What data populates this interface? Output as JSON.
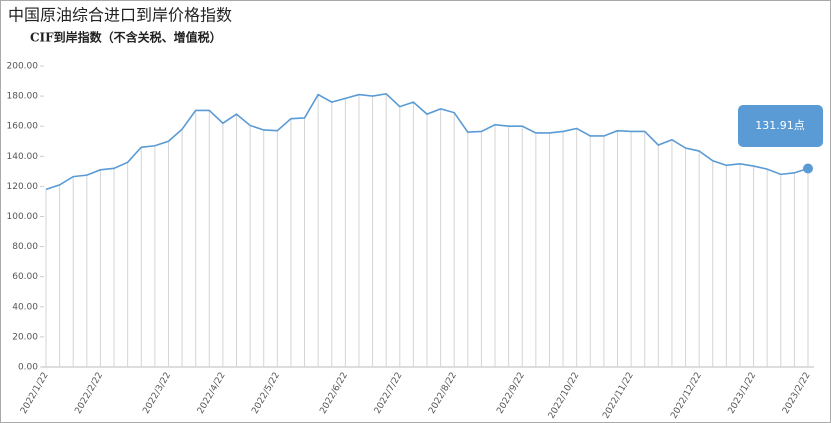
{
  "chart_data": {
    "type": "line",
    "title": "中国原油综合进口到岸价格指数",
    "subtitle": "CIF到岸指数（不含关税、增值税）",
    "annotation": "131.91点",
    "color": "#5b9bd5",
    "drop_lines": true,
    "categories": [
      "2022/1/22",
      null,
      null,
      null,
      "2022/2/22",
      null,
      null,
      null,
      null,
      "2022/3/22",
      null,
      null,
      null,
      "2022/4/22",
      null,
      null,
      null,
      "2022/5/22",
      null,
      null,
      null,
      null,
      "2022/6/22",
      null,
      null,
      null,
      "2022/7/22",
      null,
      null,
      null,
      "2022/8/22",
      null,
      null,
      null,
      null,
      "2022/9/22",
      null,
      null,
      null,
      "2022/10/22",
      null,
      null,
      null,
      "2022/11/22",
      null,
      null,
      null,
      null,
      "2022/12/22",
      null,
      null,
      null,
      "2023/1/22",
      null,
      null,
      null,
      "2023/2/22"
    ],
    "values": [
      118,
      121,
      126.5,
      127.5,
      131,
      132,
      136,
      146,
      147,
      150,
      158,
      170.5,
      170.5,
      162,
      168,
      160.5,
      157.5,
      157,
      165,
      165.5,
      181,
      176,
      178.5,
      181,
      180,
      181.5,
      173,
      176,
      168,
      171.5,
      169,
      156,
      156.5,
      161,
      160,
      160,
      155.5,
      155.5,
      156.5,
      158.5,
      153.5,
      153.5,
      157,
      156.5,
      156.5,
      147.5,
      151,
      145.5,
      143.5,
      137,
      134,
      135,
      133.5,
      131.5,
      128,
      129,
      131.91
    ],
    "ylim": [
      0,
      200
    ],
    "yticks": [
      {
        "value": 0,
        "label": "0.00"
      },
      {
        "value": 20,
        "label": "20.00"
      },
      {
        "value": 40,
        "label": "40.00"
      },
      {
        "value": 60,
        "label": "60.00"
      },
      {
        "value": 80,
        "label": "80.00"
      },
      {
        "value": 100,
        "label": "100.00"
      },
      {
        "value": 120,
        "label": "120.00"
      },
      {
        "value": 140,
        "label": "140.00"
      },
      {
        "value": 160,
        "label": "160.00"
      },
      {
        "value": 180,
        "label": "180.00"
      },
      {
        "value": 200,
        "label": "200.00"
      }
    ]
  }
}
